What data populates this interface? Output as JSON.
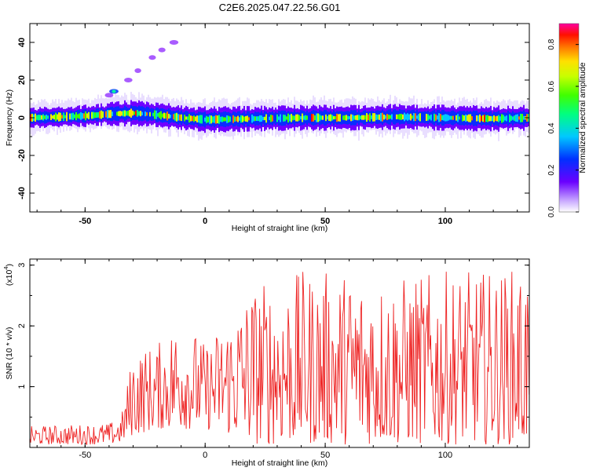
{
  "title": "C2E6.2025.047.22.56.G01",
  "chart_data": [
    {
      "type": "heatmap",
      "xlabel": "Height of straight line (km)",
      "ylabel": "Frequency (Hz)",
      "xlim": [
        -73,
        135
      ],
      "ylim": [
        -50,
        50
      ],
      "xticks": [
        -50,
        0,
        50,
        100
      ],
      "yticks": [
        -40,
        -20,
        0,
        20,
        40
      ],
      "colorbar": {
        "label": "Normalized spectral amplitude",
        "range": [
          0.0,
          0.9
        ],
        "ticks": [
          0.0,
          0.2,
          0.4,
          0.6,
          0.8
        ]
      },
      "ridge": {
        "x": [
          -73,
          -60,
          -50,
          -40,
          -30,
          -20,
          -10,
          0,
          20,
          40,
          60,
          80,
          100,
          120,
          135
        ],
        "y": [
          0.0,
          0.5,
          1.0,
          2.0,
          2.5,
          1.5,
          0.0,
          -1.0,
          -0.5,
          0.0,
          0.0,
          0.5,
          0.0,
          -0.5,
          0.0
        ]
      },
      "branch": {
        "x": [
          -40,
          -38,
          -32,
          -28,
          -22,
          -18,
          -13
        ],
        "y": [
          12,
          14,
          20,
          25,
          32,
          36,
          40
        ]
      },
      "grid": false
    },
    {
      "type": "line",
      "xlabel": "Height of straight line (km)",
      "ylabel": "SNR (10 * v/v)",
      "yscale_label": "(x10",
      "yscale_exp": "4",
      "xlim": [
        -73,
        135
      ],
      "ylim": [
        0,
        3.1
      ],
      "xticks": [
        -50,
        0,
        50,
        100
      ],
      "yticks": [
        1,
        2,
        3
      ],
      "color": "#ee2222",
      "envelope": {
        "x": [
          -73,
          -40,
          -35,
          -30,
          -20,
          -10,
          0,
          10,
          20,
          40,
          60,
          80,
          100,
          120,
          135
        ],
        "low": [
          0.05,
          0.05,
          0.08,
          0.2,
          0.3,
          0.3,
          0.3,
          0.2,
          0.05,
          0.05,
          0.05,
          0.05,
          0.05,
          0.05,
          0.05
        ],
        "high": [
          0.35,
          0.4,
          0.5,
          1.6,
          1.7,
          2.2,
          1.7,
          2.2,
          2.7,
          2.9,
          2.9,
          2.8,
          2.9,
          2.9,
          3.0
        ]
      },
      "grid": false
    }
  ]
}
